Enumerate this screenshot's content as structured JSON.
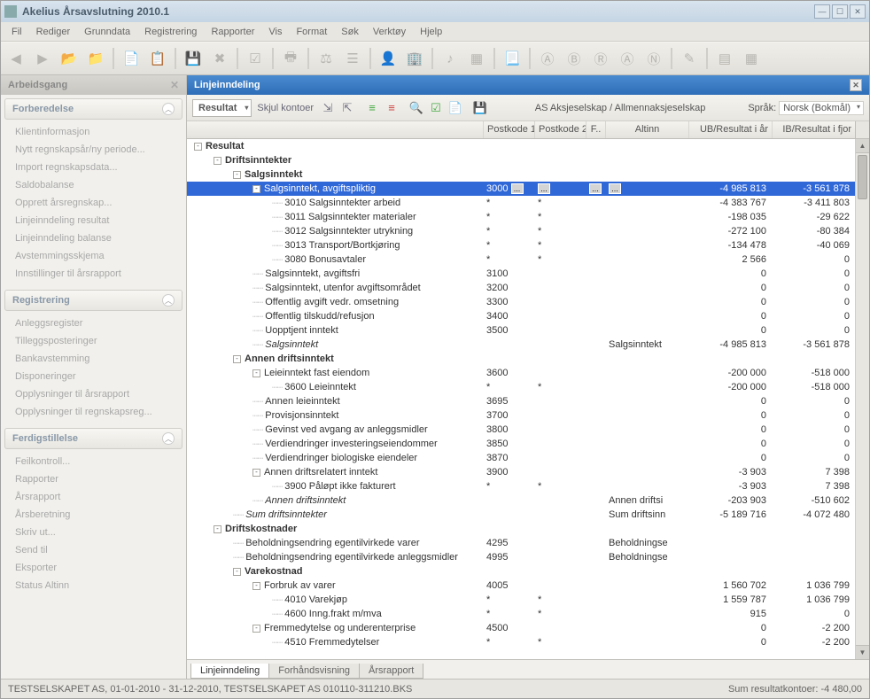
{
  "window": {
    "title": "Akelius Årsavslutning 2010.1"
  },
  "menu": {
    "items": [
      "Fil",
      "Rediger",
      "Grunndata",
      "Registrering",
      "Rapporter",
      "Vis",
      "Format",
      "Søk",
      "Verktøy",
      "Hjelp"
    ]
  },
  "sidebar": {
    "title": "Arbeidsgang",
    "sections": [
      {
        "title": "Forberedelse",
        "items": [
          "Klientinformasjon",
          "Nytt regnskapsår/ny periode...",
          "Import regnskapsdata...",
          "Saldobalanse",
          "Opprett årsregnskap...",
          "Linjeinndeling resultat",
          "Linjeinndeling balanse",
          "Avstemmingsskjema",
          "Innstillinger til årsrapport"
        ]
      },
      {
        "title": "Registrering",
        "items": [
          "Anleggsregister",
          "Tilleggsposteringer",
          "Bankavstemming",
          "Disponeringer",
          "Opplysninger til årsrapport",
          "Opplysninger til regnskapsreg..."
        ]
      },
      {
        "title": "Ferdigstillelse",
        "items": [
          "Feilkontroll...",
          "Rapporter",
          "Årsrapport",
          "Årsberetning",
          "Skriv ut...",
          "Send til",
          "Eksporter",
          "Status Altinn"
        ]
      }
    ]
  },
  "main": {
    "title": "Linjeinndeling",
    "toolbar": {
      "dropdown": "Resultat",
      "hide_accounts": "Skjul kontoer",
      "company_type": "AS Aksjeselskap / Allmennaksjeselskap",
      "lang_label": "Språk:",
      "lang_value": "Norsk (Bokmål)"
    },
    "columns": {
      "pk1": "Postkode 1",
      "pk2": "Postkode 2",
      "f": "F..",
      "altinn": "Altinn",
      "ub": "UB/Resultat i år",
      "ib": "IB/Resultat i fjor"
    },
    "rows": [
      {
        "level": 0,
        "expander": "-",
        "bold": true,
        "label": "Resultat"
      },
      {
        "level": 1,
        "expander": "-",
        "bold": true,
        "label": "Driftsinntekter"
      },
      {
        "level": 2,
        "expander": "-",
        "bold": true,
        "label": "Salgsinntekt"
      },
      {
        "level": 3,
        "expander": "-",
        "selected": true,
        "label": "Salgsinntekt, avgiftspliktig",
        "pk1": "3000",
        "dots": true,
        "ub": "-4 985 813",
        "ib": "-3 561 878"
      },
      {
        "level": 4,
        "label": "3010 Salgsinntekter arbeid",
        "pk1": "*",
        "pk2": "*",
        "ub": "-4 383 767",
        "ib": "-3 411 803"
      },
      {
        "level": 4,
        "label": "3011 Salgsinntekter materialer",
        "pk1": "*",
        "pk2": "*",
        "ub": "-198 035",
        "ib": "-29 622"
      },
      {
        "level": 4,
        "label": "3012 Salgsinntekter utrykning",
        "pk1": "*",
        "pk2": "*",
        "ub": "-272 100",
        "ib": "-80 384"
      },
      {
        "level": 4,
        "label": "3013 Transport/Bortkjøring",
        "pk1": "*",
        "pk2": "*",
        "ub": "-134 478",
        "ib": "-40 069"
      },
      {
        "level": 4,
        "label": "3080 Bonusavtaler",
        "pk1": "*",
        "pk2": "*",
        "ub": "2 566",
        "ib": "0"
      },
      {
        "level": 3,
        "label": "Salgsinntekt, avgiftsfri",
        "pk1": "3100",
        "ub": "0",
        "ib": "0"
      },
      {
        "level": 3,
        "label": "Salgsinntekt, utenfor avgiftsområdet",
        "pk1": "3200",
        "ub": "0",
        "ib": "0"
      },
      {
        "level": 3,
        "label": "Offentlig avgift vedr. omsetning",
        "pk1": "3300",
        "ub": "0",
        "ib": "0"
      },
      {
        "level": 3,
        "label": "Offentlig tilskudd/refusjon",
        "pk1": "3400",
        "ub": "0",
        "ib": "0"
      },
      {
        "level": 3,
        "label": "Uopptjent inntekt",
        "pk1": "3500",
        "ub": "0",
        "ib": "0"
      },
      {
        "level": 3,
        "italic": true,
        "label": "Salgsinntekt",
        "altinn": "Salgsinntekt",
        "ub": "-4 985 813",
        "ib": "-3 561 878"
      },
      {
        "level": 2,
        "expander": "-",
        "bold": true,
        "label": "Annen driftsinntekt"
      },
      {
        "level": 3,
        "expander": "-",
        "label": "Leieinntekt fast eiendom",
        "pk1": "3600",
        "ub": "-200 000",
        "ib": "-518 000"
      },
      {
        "level": 4,
        "label": "3600 Leieinntekt",
        "pk1": "*",
        "pk2": "*",
        "ub": "-200 000",
        "ib": "-518 000"
      },
      {
        "level": 3,
        "label": "Annen leieinntekt",
        "pk1": "3695",
        "ub": "0",
        "ib": "0"
      },
      {
        "level": 3,
        "label": "Provisjonsinntekt",
        "pk1": "3700",
        "ub": "0",
        "ib": "0"
      },
      {
        "level": 3,
        "label": "Gevinst ved avgang av anleggsmidler",
        "pk1": "3800",
        "ub": "0",
        "ib": "0"
      },
      {
        "level": 3,
        "label": "Verdiendringer investeringseiendommer",
        "pk1": "3850",
        "ub": "0",
        "ib": "0"
      },
      {
        "level": 3,
        "label": "Verdiendringer biologiske eiendeler",
        "pk1": "3870",
        "ub": "0",
        "ib": "0"
      },
      {
        "level": 3,
        "expander": "-",
        "label": "Annen driftsrelatert inntekt",
        "pk1": "3900",
        "ub": "-3 903",
        "ib": "7 398"
      },
      {
        "level": 4,
        "label": "3900 Påløpt ikke fakturert",
        "pk1": "*",
        "pk2": "*",
        "ub": "-3 903",
        "ib": "7 398"
      },
      {
        "level": 3,
        "italic": true,
        "label": "Annen driftsinntekt",
        "altinn": "Annen driftsi",
        "ub": "-203 903",
        "ib": "-510 602"
      },
      {
        "level": 2,
        "italic": true,
        "label": "Sum driftsinntekter",
        "altinn": "Sum driftsinn",
        "ub": "-5 189 716",
        "ib": "-4 072 480"
      },
      {
        "level": 1,
        "expander": "-",
        "bold": true,
        "label": "Driftskostnader"
      },
      {
        "level": 2,
        "label": "Beholdningsendring egentilvirkede varer",
        "pk1": "4295",
        "altinn": "Beholdningse"
      },
      {
        "level": 2,
        "label": "Beholdningsendring egentilvirkede anleggsmidler",
        "pk1": "4995",
        "altinn": "Beholdningse"
      },
      {
        "level": 2,
        "expander": "-",
        "bold": true,
        "label": "Varekostnad"
      },
      {
        "level": 3,
        "expander": "-",
        "label": "Forbruk av varer",
        "pk1": "4005",
        "ub": "1 560 702",
        "ib": "1 036 799"
      },
      {
        "level": 4,
        "label": "4010 Varekjøp",
        "pk1": "*",
        "pk2": "*",
        "ub": "1 559 787",
        "ib": "1 036 799"
      },
      {
        "level": 4,
        "label": "4600 Inng.frakt m/mva",
        "pk1": "*",
        "pk2": "*",
        "ub": "915",
        "ib": "0"
      },
      {
        "level": 3,
        "expander": "-",
        "label": "Fremmedytelse og underenterprise",
        "pk1": "4500",
        "ub": "0",
        "ib": "-2 200"
      },
      {
        "level": 4,
        "label": "4510 Fremmedytelser",
        "pk1": "*",
        "pk2": "*",
        "ub": "0",
        "ib": "-2 200"
      }
    ],
    "tabs": [
      {
        "label": "Linjeinndeling",
        "active": true
      },
      {
        "label": "Forhåndsvisning",
        "active": false
      },
      {
        "label": "Årsrapport",
        "active": false
      }
    ]
  },
  "status": {
    "left": "TESTSELSKAPET AS, 01-01-2010 - 31-12-2010, TESTSELSKAPET AS 010110-311210.BKS",
    "right": "Sum resultatkontoer: -4 480,00"
  },
  "colors": {
    "selection_bg": "#3168d8",
    "panel_header_bg": "#2e6eb8",
    "app_bg": "#eae8e3"
  }
}
